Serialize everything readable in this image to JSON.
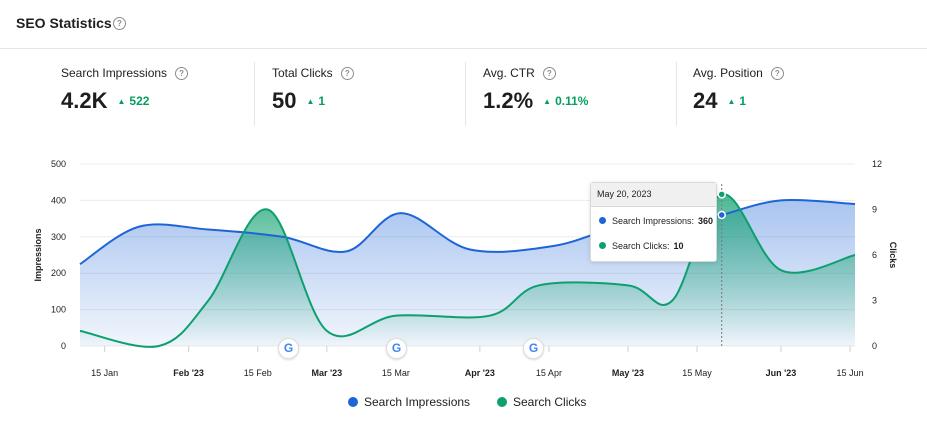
{
  "header": {
    "title": "SEO Statistics",
    "help_icon": "question-circle-icon"
  },
  "kpis": [
    {
      "label": "Search Impressions",
      "value": "4.2K",
      "delta": "522",
      "direction": "up"
    },
    {
      "label": "Total Clicks",
      "value": "50",
      "delta": "1",
      "direction": "up"
    },
    {
      "label": "Avg. CTR",
      "value": "1.2%",
      "delta": "0.11%",
      "direction": "up"
    },
    {
      "label": "Avg. Position",
      "value": "24",
      "delta": "1",
      "direction": "up"
    }
  ],
  "colors": {
    "impressions": "#1d65d6",
    "clicks": "#0e9f6e",
    "positive": "#069e5e"
  },
  "chart_data": {
    "type": "area",
    "x_ticks": [
      "15 Jan",
      "Feb '23",
      "15 Feb",
      "Mar '23",
      "15 Mar",
      "Apr '23",
      "15 Apr",
      "May '23",
      "15 May",
      "Jun '23",
      "15 Jun"
    ],
    "x_tick_dates": [
      "2023-01-15",
      "2023-02-01",
      "2023-02-15",
      "2023-03-01",
      "2023-03-15",
      "2023-04-01",
      "2023-04-15",
      "2023-05-01",
      "2023-05-15",
      "2023-06-01",
      "2023-06-15"
    ],
    "y_left": {
      "label": "Impressions",
      "ticks": [
        "0",
        "100",
        "200",
        "300",
        "400",
        "500"
      ],
      "range": [
        0,
        500
      ]
    },
    "y_right": {
      "label": "Clicks",
      "ticks": [
        "0",
        "3",
        "6",
        "9",
        "12"
      ],
      "range": [
        0,
        12
      ]
    },
    "grid": true,
    "legend_position": "bottom",
    "series": [
      {
        "name": "Search Impressions",
        "axis": "left",
        "points": [
          [
            "2023-01-10",
            225
          ],
          [
            "2023-01-22",
            328
          ],
          [
            "2023-02-05",
            320
          ],
          [
            "2023-02-20",
            300
          ],
          [
            "2023-03-05",
            260
          ],
          [
            "2023-03-16",
            365
          ],
          [
            "2023-03-30",
            265
          ],
          [
            "2023-04-16",
            275
          ],
          [
            "2023-04-30",
            330
          ],
          [
            "2023-05-15",
            345
          ],
          [
            "2023-05-20",
            360
          ],
          [
            "2023-06-01",
            400
          ],
          [
            "2023-06-16",
            390
          ]
        ]
      },
      {
        "name": "Search Clicks",
        "axis": "right",
        "points": [
          [
            "2023-01-10",
            1
          ],
          [
            "2023-01-26",
            0
          ],
          [
            "2023-02-05",
            3
          ],
          [
            "2023-02-17",
            9
          ],
          [
            "2023-03-01",
            1
          ],
          [
            "2023-03-15",
            2
          ],
          [
            "2023-04-03",
            2
          ],
          [
            "2023-04-13",
            4
          ],
          [
            "2023-05-01",
            4
          ],
          [
            "2023-05-10",
            3
          ],
          [
            "2023-05-20",
            10
          ],
          [
            "2023-06-01",
            5
          ],
          [
            "2023-06-16",
            6
          ]
        ]
      }
    ],
    "annotations": [
      {
        "date": "2023-02-17",
        "icon": "google-update-icon"
      },
      {
        "date": "2023-03-15",
        "icon": "google-update-icon"
      },
      {
        "date": "2023-04-13",
        "icon": "google-update-icon"
      }
    ],
    "tooltip": {
      "date": "May 20, 2023",
      "rows": [
        {
          "label": "Search Impressions:",
          "value": "360"
        },
        {
          "label": "Search Clicks:",
          "value": "10"
        }
      ]
    }
  },
  "legend": [
    {
      "label": "Search Impressions"
    },
    {
      "label": "Search Clicks"
    }
  ]
}
